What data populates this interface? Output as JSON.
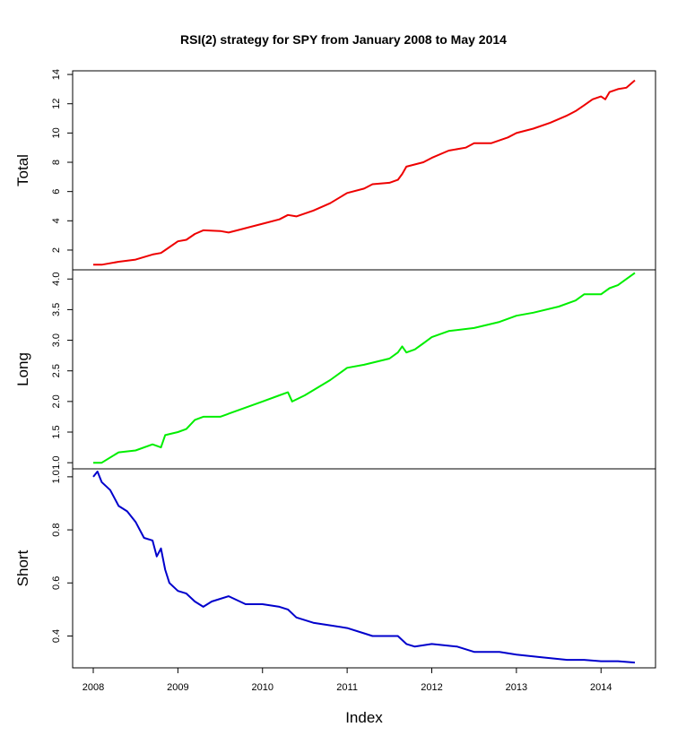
{
  "chart_data": {
    "type": "line",
    "title": "RSI(2) strategy for SPY from January 2008 to May 2014",
    "xlabel": "Index",
    "x_ticks": [
      "2008",
      "2009",
      "2010",
      "2011",
      "2012",
      "2013",
      "2014"
    ],
    "x_range": [
      2008.0,
      2014.4
    ],
    "panels": [
      {
        "name": "Total",
        "color": "#ee0000",
        "yticks": [
          "2",
          "4",
          "6",
          "8",
          "10",
          "12",
          "14"
        ],
        "ytick_values": [
          2,
          4,
          6,
          8,
          10,
          12,
          14
        ],
        "ylim": [
          0.65,
          14.25
        ],
        "series": [
          {
            "x": 2008.0,
            "y": 1.0
          },
          {
            "x": 2008.1,
            "y": 1.0
          },
          {
            "x": 2008.3,
            "y": 1.2
          },
          {
            "x": 2008.5,
            "y": 1.35
          },
          {
            "x": 2008.7,
            "y": 1.7
          },
          {
            "x": 2008.8,
            "y": 1.8
          },
          {
            "x": 2008.85,
            "y": 2.0
          },
          {
            "x": 2009.0,
            "y": 2.6
          },
          {
            "x": 2009.1,
            "y": 2.7
          },
          {
            "x": 2009.2,
            "y": 3.1
          },
          {
            "x": 2009.3,
            "y": 3.35
          },
          {
            "x": 2009.5,
            "y": 3.3
          },
          {
            "x": 2009.6,
            "y": 3.2
          },
          {
            "x": 2009.8,
            "y": 3.5
          },
          {
            "x": 2010.0,
            "y": 3.8
          },
          {
            "x": 2010.2,
            "y": 4.1
          },
          {
            "x": 2010.3,
            "y": 4.4
          },
          {
            "x": 2010.4,
            "y": 4.3
          },
          {
            "x": 2010.6,
            "y": 4.7
          },
          {
            "x": 2010.8,
            "y": 5.2
          },
          {
            "x": 2011.0,
            "y": 5.9
          },
          {
            "x": 2011.2,
            "y": 6.2
          },
          {
            "x": 2011.3,
            "y": 6.5
          },
          {
            "x": 2011.5,
            "y": 6.6
          },
          {
            "x": 2011.6,
            "y": 6.8
          },
          {
            "x": 2011.65,
            "y": 7.2
          },
          {
            "x": 2011.7,
            "y": 7.7
          },
          {
            "x": 2011.9,
            "y": 8.0
          },
          {
            "x": 2012.0,
            "y": 8.3
          },
          {
            "x": 2012.2,
            "y": 8.8
          },
          {
            "x": 2012.4,
            "y": 9.0
          },
          {
            "x": 2012.5,
            "y": 9.3
          },
          {
            "x": 2012.7,
            "y": 9.3
          },
          {
            "x": 2012.9,
            "y": 9.7
          },
          {
            "x": 2013.0,
            "y": 10.0
          },
          {
            "x": 2013.2,
            "y": 10.3
          },
          {
            "x": 2013.4,
            "y": 10.7
          },
          {
            "x": 2013.6,
            "y": 11.2
          },
          {
            "x": 2013.7,
            "y": 11.5
          },
          {
            "x": 2013.8,
            "y": 11.9
          },
          {
            "x": 2013.9,
            "y": 12.3
          },
          {
            "x": 2014.0,
            "y": 12.5
          },
          {
            "x": 2014.05,
            "y": 12.3
          },
          {
            "x": 2014.1,
            "y": 12.8
          },
          {
            "x": 2014.2,
            "y": 13.0
          },
          {
            "x": 2014.3,
            "y": 13.1
          },
          {
            "x": 2014.4,
            "y": 13.6
          }
        ]
      },
      {
        "name": "Long",
        "color": "#00ee00",
        "yticks": [
          "1.0",
          "1.5",
          "2.0",
          "2.5",
          "3.0",
          "3.5",
          "4.0"
        ],
        "ytick_values": [
          1.0,
          1.5,
          2.0,
          2.5,
          3.0,
          3.5,
          4.0
        ],
        "ylim": [
          0.9,
          4.15
        ],
        "series": [
          {
            "x": 2008.0,
            "y": 1.0
          },
          {
            "x": 2008.1,
            "y": 1.0
          },
          {
            "x": 2008.3,
            "y": 1.17
          },
          {
            "x": 2008.5,
            "y": 1.2
          },
          {
            "x": 2008.7,
            "y": 1.3
          },
          {
            "x": 2008.8,
            "y": 1.25
          },
          {
            "x": 2008.85,
            "y": 1.45
          },
          {
            "x": 2009.0,
            "y": 1.5
          },
          {
            "x": 2009.1,
            "y": 1.55
          },
          {
            "x": 2009.2,
            "y": 1.7
          },
          {
            "x": 2009.3,
            "y": 1.75
          },
          {
            "x": 2009.5,
            "y": 1.75
          },
          {
            "x": 2009.8,
            "y": 1.9
          },
          {
            "x": 2010.0,
            "y": 2.0
          },
          {
            "x": 2010.2,
            "y": 2.1
          },
          {
            "x": 2010.3,
            "y": 2.15
          },
          {
            "x": 2010.35,
            "y": 2.0
          },
          {
            "x": 2010.5,
            "y": 2.1
          },
          {
            "x": 2010.8,
            "y": 2.35
          },
          {
            "x": 2011.0,
            "y": 2.55
          },
          {
            "x": 2011.2,
            "y": 2.6
          },
          {
            "x": 2011.5,
            "y": 2.7
          },
          {
            "x": 2011.6,
            "y": 2.8
          },
          {
            "x": 2011.65,
            "y": 2.9
          },
          {
            "x": 2011.7,
            "y": 2.8
          },
          {
            "x": 2011.8,
            "y": 2.85
          },
          {
            "x": 2011.9,
            "y": 2.95
          },
          {
            "x": 2012.0,
            "y": 3.05
          },
          {
            "x": 2012.2,
            "y": 3.15
          },
          {
            "x": 2012.5,
            "y": 3.2
          },
          {
            "x": 2012.8,
            "y": 3.3
          },
          {
            "x": 2013.0,
            "y": 3.4
          },
          {
            "x": 2013.2,
            "y": 3.45
          },
          {
            "x": 2013.5,
            "y": 3.55
          },
          {
            "x": 2013.7,
            "y": 3.65
          },
          {
            "x": 2013.8,
            "y": 3.75
          },
          {
            "x": 2014.0,
            "y": 3.75
          },
          {
            "x": 2014.1,
            "y": 3.85
          },
          {
            "x": 2014.2,
            "y": 3.9
          },
          {
            "x": 2014.3,
            "y": 4.0
          },
          {
            "x": 2014.4,
            "y": 4.1
          }
        ]
      },
      {
        "name": "Short",
        "color": "#0000cc",
        "yticks": [
          "0.4",
          "0.6",
          "0.8",
          "1.0"
        ],
        "ytick_values": [
          0.4,
          0.6,
          0.8,
          1.0
        ],
        "ylim": [
          0.28,
          1.03
        ],
        "series": [
          {
            "x": 2008.0,
            "y": 1.0
          },
          {
            "x": 2008.05,
            "y": 1.02
          },
          {
            "x": 2008.1,
            "y": 0.98
          },
          {
            "x": 2008.2,
            "y": 0.95
          },
          {
            "x": 2008.3,
            "y": 0.89
          },
          {
            "x": 2008.4,
            "y": 0.87
          },
          {
            "x": 2008.5,
            "y": 0.83
          },
          {
            "x": 2008.6,
            "y": 0.77
          },
          {
            "x": 2008.7,
            "y": 0.76
          },
          {
            "x": 2008.75,
            "y": 0.7
          },
          {
            "x": 2008.8,
            "y": 0.73
          },
          {
            "x": 2008.85,
            "y": 0.65
          },
          {
            "x": 2008.9,
            "y": 0.6
          },
          {
            "x": 2009.0,
            "y": 0.57
          },
          {
            "x": 2009.1,
            "y": 0.56
          },
          {
            "x": 2009.2,
            "y": 0.53
          },
          {
            "x": 2009.3,
            "y": 0.51
          },
          {
            "x": 2009.4,
            "y": 0.53
          },
          {
            "x": 2009.6,
            "y": 0.55
          },
          {
            "x": 2009.8,
            "y": 0.52
          },
          {
            "x": 2010.0,
            "y": 0.52
          },
          {
            "x": 2010.2,
            "y": 0.51
          },
          {
            "x": 2010.3,
            "y": 0.5
          },
          {
            "x": 2010.4,
            "y": 0.47
          },
          {
            "x": 2010.6,
            "y": 0.45
          },
          {
            "x": 2010.8,
            "y": 0.44
          },
          {
            "x": 2011.0,
            "y": 0.43
          },
          {
            "x": 2011.2,
            "y": 0.41
          },
          {
            "x": 2011.3,
            "y": 0.4
          },
          {
            "x": 2011.6,
            "y": 0.4
          },
          {
            "x": 2011.7,
            "y": 0.37
          },
          {
            "x": 2011.8,
            "y": 0.36
          },
          {
            "x": 2012.0,
            "y": 0.37
          },
          {
            "x": 2012.3,
            "y": 0.36
          },
          {
            "x": 2012.5,
            "y": 0.34
          },
          {
            "x": 2012.8,
            "y": 0.34
          },
          {
            "x": 2013.0,
            "y": 0.33
          },
          {
            "x": 2013.3,
            "y": 0.32
          },
          {
            "x": 2013.6,
            "y": 0.31
          },
          {
            "x": 2013.8,
            "y": 0.31
          },
          {
            "x": 2014.0,
            "y": 0.305
          },
          {
            "x": 2014.2,
            "y": 0.305
          },
          {
            "x": 2014.4,
            "y": 0.3
          }
        ]
      }
    ]
  }
}
